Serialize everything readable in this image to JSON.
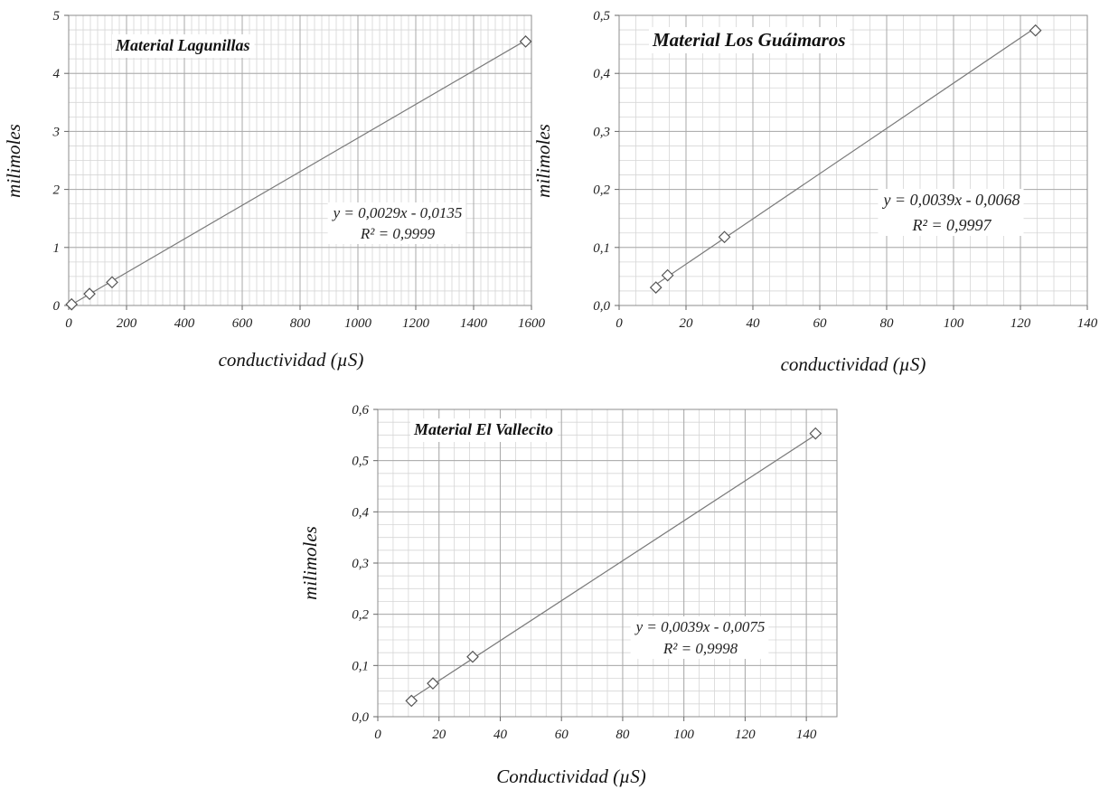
{
  "chart_data": [
    {
      "type": "scatter",
      "title": "Material Lagunillas",
      "xlabel": "conductividad (µS)",
      "ylabel": "milimoles",
      "xlim": [
        0,
        1600
      ],
      "ylim": [
        0,
        5
      ],
      "xticks": [
        0,
        200,
        400,
        600,
        800,
        1000,
        1200,
        1400,
        1600
      ],
      "yticks": [
        0,
        1,
        2,
        3,
        4,
        5
      ],
      "xtick_labels": [
        "0",
        "200",
        "400",
        "600",
        "800",
        "1000",
        "1200",
        "1400",
        "1600"
      ],
      "ytick_labels": [
        "0",
        "1",
        "2",
        "3",
        "4",
        "5"
      ],
      "grid": true,
      "points": [
        {
          "x": 10,
          "y": 0.02
        },
        {
          "x": 72,
          "y": 0.2
        },
        {
          "x": 150,
          "y": 0.4
        },
        {
          "x": 1580,
          "y": 4.55
        }
      ],
      "trendline": {
        "slope": 0.0029,
        "intercept": -0.0135,
        "x_range": [
          0,
          1580
        ]
      },
      "equation": "y = 0,0029x - 0,0135",
      "r2": "R² = 0,9999"
    },
    {
      "type": "scatter",
      "title": "Material Los Guáimaros",
      "xlabel": "conductividad (µS)",
      "ylabel": "milimoles",
      "xlim": [
        0,
        140
      ],
      "ylim": [
        0,
        0.5
      ],
      "xticks": [
        0,
        20,
        40,
        60,
        80,
        100,
        120,
        140
      ],
      "yticks": [
        0,
        0.1,
        0.2,
        0.3,
        0.4,
        0.5
      ],
      "xtick_labels": [
        "0",
        "20",
        "40",
        "60",
        "80",
        "100",
        "120",
        "140"
      ],
      "ytick_labels": [
        "0,0",
        "0,1",
        "0,2",
        "0,3",
        "0,4",
        "0,5"
      ],
      "grid": true,
      "points": [
        {
          "x": 11,
          "y": 0.031
        },
        {
          "x": 14.5,
          "y": 0.052
        },
        {
          "x": 31.5,
          "y": 0.118
        },
        {
          "x": 124.5,
          "y": 0.474
        }
      ],
      "trendline": {
        "slope": 0.0039,
        "intercept": -0.0068,
        "x_range": [
          10,
          124.5
        ]
      },
      "equation": "y = 0,0039x - 0,0068",
      "r2": "R² = 0,9997"
    },
    {
      "type": "scatter",
      "title": "Material El Vallecito",
      "xlabel": "Conductividad (µS)",
      "ylabel": "milimoles",
      "xlim": [
        0,
        150
      ],
      "ylim": [
        0,
        0.6
      ],
      "xticks": [
        0,
        20,
        40,
        60,
        80,
        100,
        120,
        140
      ],
      "yticks": [
        0,
        0.1,
        0.2,
        0.3,
        0.4,
        0.5,
        0.6
      ],
      "xtick_labels": [
        "0",
        "20",
        "40",
        "60",
        "80",
        "100",
        "120",
        "140"
      ],
      "ytick_labels": [
        "0,0",
        "0,1",
        "0,2",
        "0,3",
        "0,4",
        "0,5",
        "0,6"
      ],
      "grid": true,
      "points": [
        {
          "x": 11,
          "y": 0.031
        },
        {
          "x": 18,
          "y": 0.065
        },
        {
          "x": 31,
          "y": 0.117
        },
        {
          "x": 143,
          "y": 0.553
        }
      ],
      "trendline": {
        "slope": 0.0039,
        "intercept": -0.0075,
        "x_range": [
          10,
          143
        ]
      },
      "equation": "y = 0,0039x - 0,0075",
      "r2": "R² = 0,9998"
    }
  ]
}
